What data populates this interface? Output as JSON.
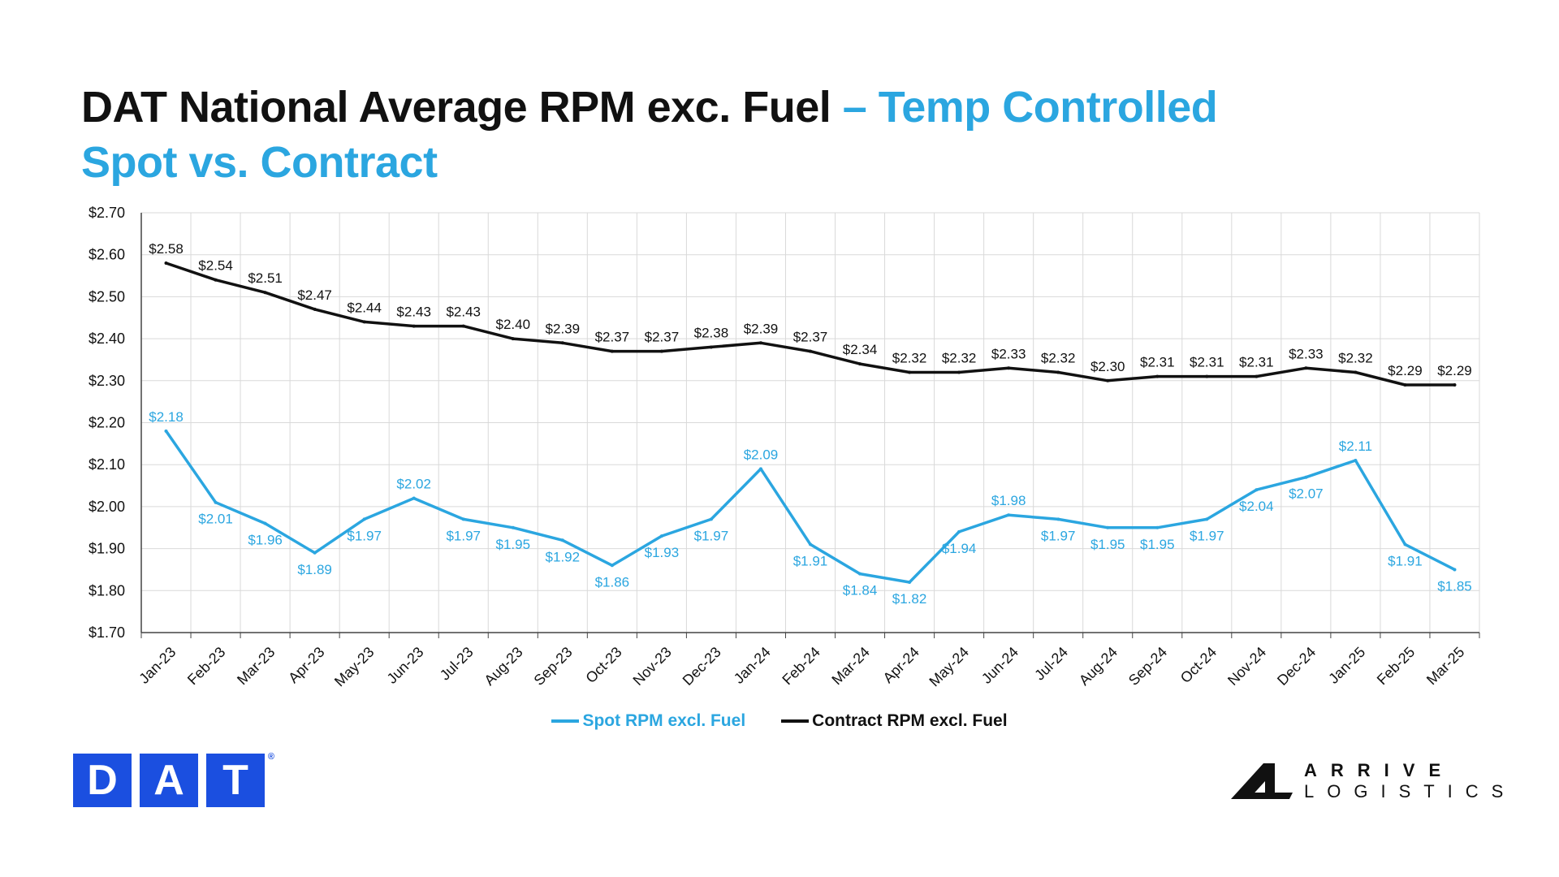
{
  "title": {
    "main": "DAT National Average RPM exc. Fuel",
    "accent": "– Temp Controlled",
    "line2": "Spot vs. Contract"
  },
  "colors": {
    "spot": "#2ba6e0",
    "contract": "#111111",
    "dat_blue": "#1b4fe0"
  },
  "chart_data": {
    "type": "line",
    "x": [
      "Jan-23",
      "Feb-23",
      "Mar-23",
      "Apr-23",
      "May-23",
      "Jun-23",
      "Jul-23",
      "Aug-23",
      "Sep-23",
      "Oct-23",
      "Nov-23",
      "Dec-23",
      "Jan-24",
      "Feb-24",
      "Mar-24",
      "Apr-24",
      "May-24",
      "Jun-24",
      "Jul-24",
      "Aug-24",
      "Sep-24",
      "Oct-24",
      "Nov-24",
      "Dec-24",
      "Jan-25",
      "Feb-25",
      "Mar-25"
    ],
    "series": [
      {
        "name": "Spot RPM excl. Fuel",
        "color": "#2ba6e0",
        "values": [
          2.18,
          2.01,
          1.96,
          1.89,
          1.97,
          2.02,
          1.97,
          1.95,
          1.92,
          1.86,
          1.93,
          1.97,
          2.09,
          1.91,
          1.84,
          1.82,
          1.94,
          1.98,
          1.97,
          1.95,
          1.95,
          1.97,
          2.04,
          2.07,
          2.11,
          1.91,
          1.85
        ]
      },
      {
        "name": "Contract RPM excl. Fuel",
        "color": "#111111",
        "values": [
          2.58,
          2.54,
          2.51,
          2.47,
          2.44,
          2.43,
          2.43,
          2.4,
          2.39,
          2.37,
          2.37,
          2.38,
          2.39,
          2.37,
          2.34,
          2.32,
          2.32,
          2.33,
          2.32,
          2.3,
          2.31,
          2.31,
          2.31,
          2.33,
          2.32,
          2.29,
          2.29
        ]
      }
    ],
    "ylim": [
      1.7,
      2.7
    ],
    "yticks": [
      1.7,
      1.8,
      1.9,
      2.0,
      2.1,
      2.2,
      2.3,
      2.4,
      2.5,
      2.6,
      2.7
    ],
    "y_prefix": "$",
    "grid": true,
    "legend": "bottom-center",
    "xlabel": "",
    "ylabel": ""
  },
  "logos": {
    "dat_letters": [
      "D",
      "A",
      "T"
    ],
    "dat_reg": "®",
    "arrive_line1": "ARRIVE",
    "arrive_line2": "LOGISTICS"
  }
}
